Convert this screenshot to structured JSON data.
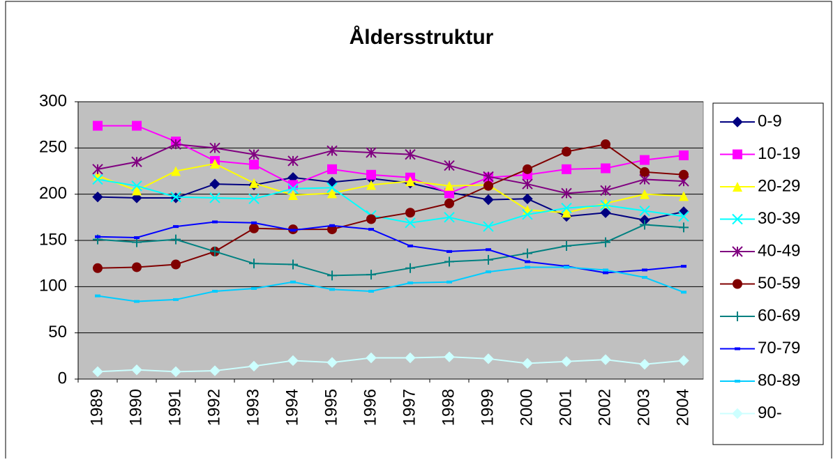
{
  "chart_data": {
    "type": "line",
    "title": "Åldersstruktur",
    "categories": [
      "1989",
      "1990",
      "1991",
      "1992",
      "1993",
      "1994",
      "1995",
      "1996",
      "1997",
      "1998",
      "1999",
      "2000",
      "2001",
      "2002",
      "2003",
      "2004"
    ],
    "ylim": [
      0,
      300
    ],
    "yticks": [
      0,
      50,
      100,
      150,
      200,
      250,
      300
    ],
    "grid": true,
    "legend": "right",
    "series": [
      {
        "name": "0-9",
        "color": "#000080",
        "marker": "diamond",
        "values": [
          197,
          196,
          196,
          211,
          210,
          218,
          213,
          217,
          212,
          202,
          194,
          195,
          176,
          180,
          172,
          181
        ]
      },
      {
        "name": "10-19",
        "color": "#ff00ff",
        "marker": "square",
        "values": [
          274,
          274,
          257,
          236,
          232,
          210,
          227,
          221,
          218,
          201,
          218,
          221,
          227,
          228,
          237,
          242
        ]
      },
      {
        "name": "20-29",
        "color": "#ffff00",
        "marker": "triangle",
        "values": [
          220,
          204,
          225,
          233,
          212,
          199,
          201,
          210,
          214,
          209,
          210,
          183,
          180,
          190,
          200,
          198
        ]
      },
      {
        "name": "30-39",
        "color": "#00ffff",
        "marker": "x",
        "values": [
          216,
          209,
          197,
          196,
          195,
          206,
          207,
          177,
          169,
          175,
          165,
          178,
          185,
          188,
          182,
          176
        ]
      },
      {
        "name": "40-49",
        "color": "#800080",
        "marker": "star",
        "values": [
          227,
          235,
          254,
          250,
          243,
          236,
          247,
          245,
          243,
          231,
          219,
          211,
          201,
          204,
          216,
          214
        ]
      },
      {
        "name": "50-59",
        "color": "#800000",
        "marker": "circle",
        "values": [
          120,
          121,
          124,
          138,
          163,
          162,
          162,
          173,
          180,
          190,
          209,
          227,
          246,
          254,
          224,
          221
        ]
      },
      {
        "name": "60-69",
        "color": "#008080",
        "marker": "plus",
        "values": [
          151,
          148,
          151,
          138,
          125,
          124,
          112,
          113,
          120,
          127,
          129,
          136,
          144,
          148,
          167,
          164
        ]
      },
      {
        "name": "70-79",
        "color": "#0000ff",
        "marker": "dash",
        "values": [
          154,
          153,
          165,
          170,
          169,
          161,
          166,
          162,
          144,
          138,
          140,
          127,
          122,
          115,
          118,
          122
        ]
      },
      {
        "name": "80-89",
        "color": "#00ccff",
        "marker": "dash",
        "values": [
          90,
          84,
          86,
          95,
          98,
          105,
          97,
          95,
          104,
          105,
          116,
          121,
          121,
          118,
          110,
          94
        ]
      },
      {
        "name": "90-",
        "color": "#ccffff",
        "marker": "diamond",
        "values": [
          8,
          10,
          8,
          9,
          14,
          20,
          18,
          23,
          23,
          24,
          22,
          17,
          19,
          21,
          16,
          20
        ]
      }
    ]
  }
}
